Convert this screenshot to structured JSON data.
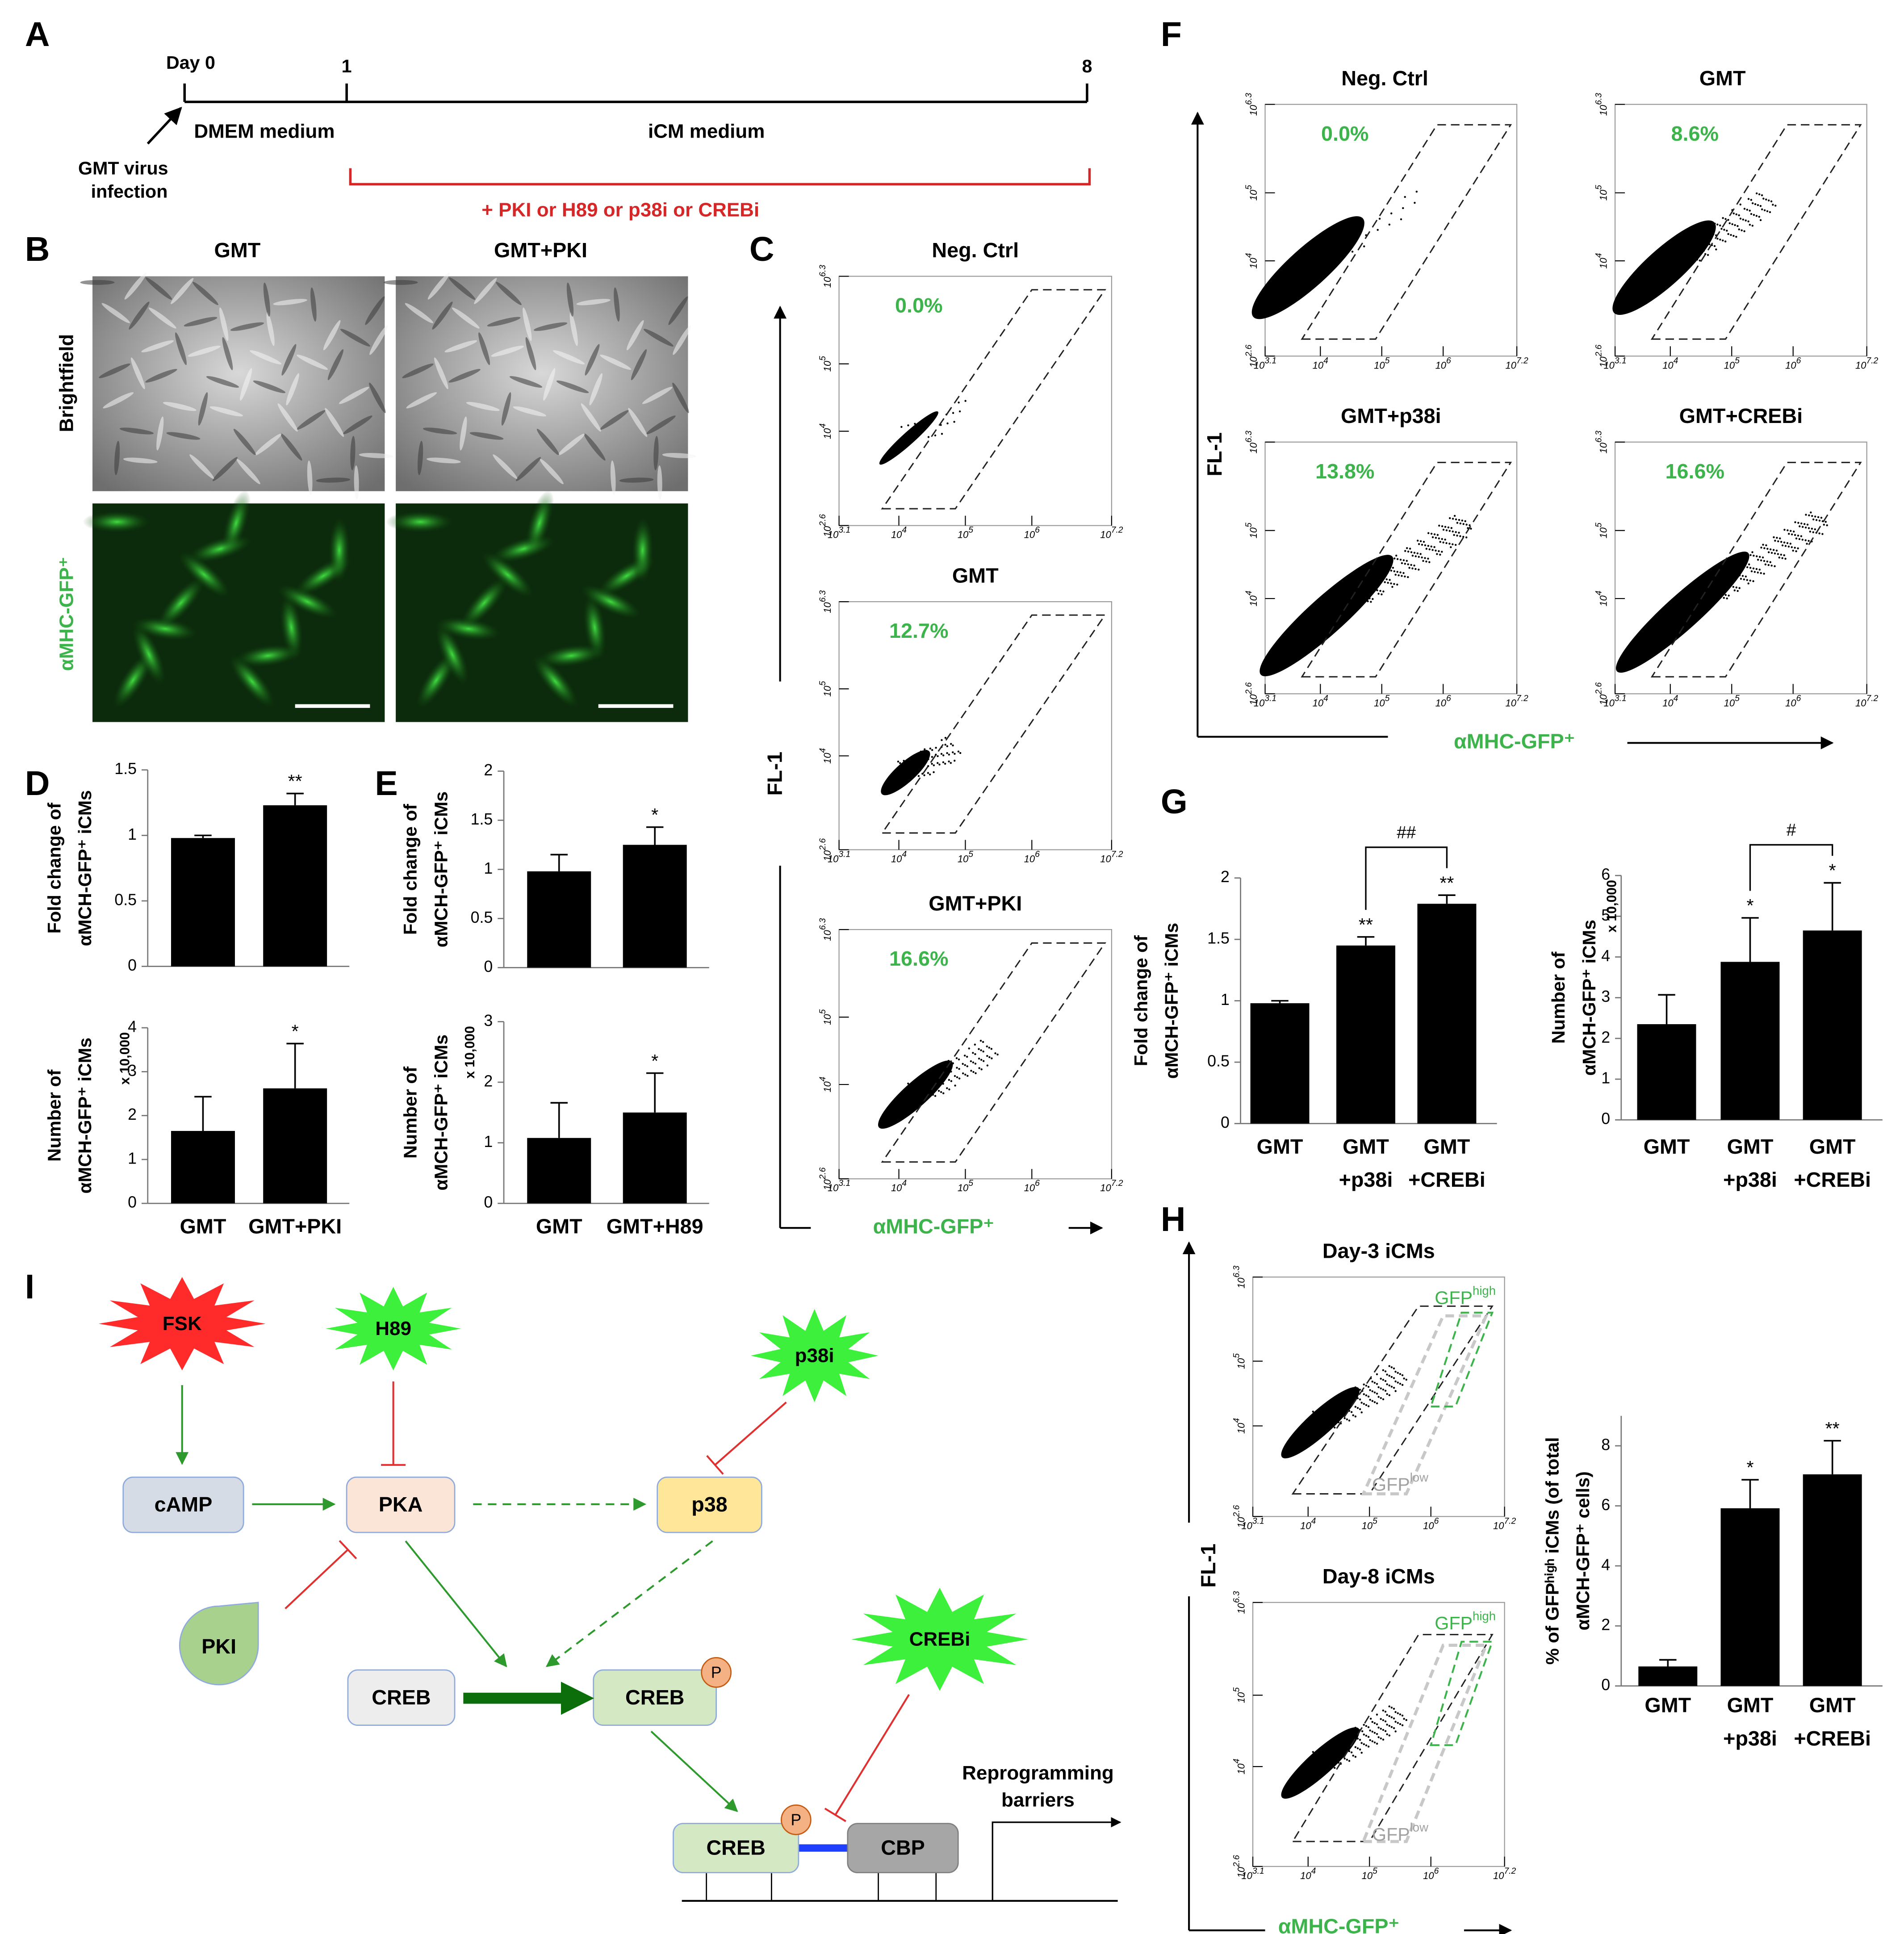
{
  "panel_labels": [
    "A",
    "B",
    "C",
    "D",
    "E",
    "F",
    "G",
    "H",
    "I"
  ],
  "timeline": {
    "day0": "Day 0",
    "day1": "1",
    "day8": "8",
    "medium1": "DMEM medium",
    "medium2": "iCM medium",
    "infection": [
      "GMT virus",
      "infection"
    ],
    "treatment": "+ PKI or H89 or p38i or CREBi"
  },
  "micrographs": {
    "columns": [
      "GMT",
      "GMT+PKI"
    ],
    "rows": [
      "Brightfield",
      "αMHC-GFP⁺"
    ]
  },
  "flow_axes": {
    "base": "10",
    "xlim": [
      3.1,
      7.2
    ],
    "ylim": [
      2.6,
      6.3
    ],
    "xticks": [
      3.1,
      4,
      5,
      6,
      7.2
    ],
    "yticks": [
      2.6,
      4,
      5,
      6.3
    ]
  },
  "flow_panels": {
    "C": {
      "ylabel": "FL-1",
      "xlabel": "αMHC-GFP⁺",
      "plots": [
        {
          "title": "Neg. Ctrl",
          "percent": "0.0%"
        },
        {
          "title": "GMT",
          "percent": "12.7%"
        },
        {
          "title": "GMT+PKI",
          "percent": "16.6%"
        }
      ]
    },
    "F": {
      "ylabel": "FL-1",
      "xlabel": "αMHC-GFP⁺",
      "plots": [
        {
          "title": "Neg. Ctrl",
          "percent": "0.0%"
        },
        {
          "title": "GMT",
          "percent": "8.6%"
        },
        {
          "title": "GMT+p38i",
          "percent": "13.8%"
        },
        {
          "title": "GMT+CREBi",
          "percent": "16.6%"
        }
      ]
    },
    "H": {
      "ylabel": "FL-1",
      "xlabel": "αMHC-GFP⁺",
      "gate_high": [
        "GFP",
        "high"
      ],
      "gate_low": [
        "GFP",
        "low"
      ],
      "plots": [
        {
          "title": "Day-3 iCMs"
        },
        {
          "title": "Day-8 iCMs"
        }
      ]
    }
  },
  "chart_data": [
    {
      "type": "bar",
      "ylabel": [
        "Fold change of",
        "αMCH-GFP⁺ iCMs"
      ],
      "values": [
        0.98,
        1.23
      ],
      "errors": [
        0.02,
        0.09
      ],
      "annotations": [
        null,
        "**"
      ],
      "color": "#000000",
      "ylim": [
        0,
        1.5
      ],
      "yticks": [
        0,
        0.5,
        1,
        1.5
      ]
    },
    {
      "type": "bar",
      "ylabel": [
        "Number of",
        "αMCH-GFP⁺ iCMs"
      ],
      "yunit": "x 10,000",
      "categories": [
        [
          "GMT"
        ],
        [
          "GMT+PKI"
        ]
      ],
      "values": [
        1.65,
        2.62
      ],
      "errors": [
        0.78,
        1.02
      ],
      "annotations": [
        null,
        "*"
      ],
      "color": "#000000",
      "ylim": [
        0,
        4
      ],
      "yticks": [
        0,
        1,
        2,
        3,
        4
      ]
    },
    {
      "type": "bar",
      "ylabel": [
        "Fold change of",
        "αMCH-GFP⁺ iCMs"
      ],
      "values": [
        0.98,
        1.25
      ],
      "errors": [
        0.17,
        0.18
      ],
      "annotations": [
        null,
        "*"
      ],
      "color": "#000000",
      "ylim": [
        0,
        2
      ],
      "yticks": [
        0,
        0.5,
        1,
        1.5,
        2
      ]
    },
    {
      "type": "bar",
      "ylabel": [
        "Number of",
        "αMCH-GFP⁺ iCMs"
      ],
      "yunit": "x 10,000",
      "categories": [
        [
          "GMT"
        ],
        [
          "GMT+H89"
        ]
      ],
      "values": [
        1.08,
        1.5
      ],
      "errors": [
        0.58,
        0.65
      ],
      "annotations": [
        null,
        "*"
      ],
      "color": "#000000",
      "ylim": [
        0,
        3
      ],
      "yticks": [
        0,
        1,
        2,
        3
      ]
    },
    {
      "type": "bar",
      "ylabel": [
        "Fold change of",
        "αMCH-GFP⁺ iCMs"
      ],
      "categories": [
        [
          "GMT"
        ],
        [
          "GMT",
          "+p38i"
        ],
        [
          "GMT",
          "+CREBi"
        ]
      ],
      "values": [
        0.98,
        1.45,
        1.79
      ],
      "errors": [
        0.02,
        0.07,
        0.07
      ],
      "annotations": [
        null,
        "**",
        "**"
      ],
      "bracket_label": "##",
      "color": "#000000",
      "ylim": [
        0,
        2
      ],
      "yticks": [
        0,
        0.5,
        1,
        1.5,
        2
      ]
    },
    {
      "type": "bar",
      "ylabel": [
        "Number of",
        "αMCH-GFP⁺ iCMs"
      ],
      "yunit": "x 10,000",
      "categories": [
        [
          "GMT"
        ],
        [
          "GMT",
          "+p38i"
        ],
        [
          "GMT",
          "+CREBi"
        ]
      ],
      "values": [
        2.35,
        3.88,
        4.65
      ],
      "errors": [
        0.72,
        1.08,
        1.17
      ],
      "annotations": [
        null,
        "*",
        "*"
      ],
      "bracket_label": "#",
      "color": "#000000",
      "ylim": [
        0,
        6
      ],
      "yticks": [
        0,
        1,
        2,
        3,
        4,
        5,
        6
      ]
    },
    {
      "type": "bar",
      "ylabel": [
        "% of GFPʰⁱᵍʰ iCMs (of total",
        "αMCH-GFP⁺ cells)"
      ],
      "categories": [
        [
          "GMT"
        ],
        [
          "GMT",
          "+p38i"
        ],
        [
          "GMT",
          "+CREBi"
        ]
      ],
      "values": [
        0.65,
        5.92,
        7.05
      ],
      "errors": [
        0.22,
        0.95,
        1.12
      ],
      "annotations": [
        null,
        "*",
        "**"
      ],
      "color": "#000000",
      "ylim": [
        0,
        9
      ],
      "yticks": [
        0,
        2,
        4,
        6,
        8
      ]
    }
  ],
  "diagram": {
    "fsk": "FSK",
    "h89": "H89",
    "p38i": "p38i",
    "camp": "cAMP",
    "pka": "PKA",
    "p38": "p38",
    "pki": "PKI",
    "creb": "CREB",
    "creb_p": "CREB",
    "crebi": "CREBi",
    "creb_bound": "CREB",
    "cbp": "CBP",
    "phospho": "P",
    "barriers": [
      "Reprogramming",
      "barriers"
    ]
  }
}
